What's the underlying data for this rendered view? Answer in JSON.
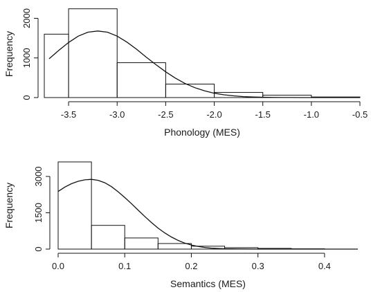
{
  "chart_data": [
    {
      "type": "bar",
      "subtype": "histogram",
      "title": "",
      "xlabel": "Phonology (MES)",
      "ylabel": "Frequency",
      "xlim": [
        -3.75,
        -0.5
      ],
      "ylim": [
        0,
        2200
      ],
      "x_ticks": [
        "-3.5",
        "-3.0",
        "-2.5",
        "-2.0",
        "-1.5",
        "-1.0",
        "-0.5"
      ],
      "y_ticks": [
        "0",
        "1000",
        "2000"
      ],
      "bins": [
        {
          "start": -3.75,
          "end": -3.5,
          "value": 1600
        },
        {
          "start": -3.5,
          "end": -3.0,
          "value": 2240
        },
        {
          "start": -3.0,
          "end": -2.5,
          "value": 880
        },
        {
          "start": -2.5,
          "end": -2.0,
          "value": 340
        },
        {
          "start": -2.0,
          "end": -1.5,
          "value": 130
        },
        {
          "start": -1.5,
          "end": -1.0,
          "value": 60
        },
        {
          "start": -1.0,
          "end": -0.5,
          "value": 15
        }
      ],
      "density_curve": {
        "x": [
          -3.7,
          -3.6,
          -3.5,
          -3.4,
          -3.3,
          -3.2,
          -3.1,
          -3.0,
          -2.9,
          -2.8,
          -2.7,
          -2.6,
          -2.5,
          -2.4,
          -2.3,
          -2.2,
          -2.1,
          -2.0,
          -1.9,
          -1.8,
          -1.7,
          -1.6,
          -1.5,
          -1.4,
          -1.3,
          -1.2,
          -1.1,
          -1.0,
          -0.9,
          -0.8,
          -0.7,
          -0.6,
          -0.5
        ],
        "y": [
          980,
          1190,
          1390,
          1550,
          1650,
          1680,
          1650,
          1550,
          1400,
          1220,
          1020,
          830,
          650,
          490,
          355,
          250,
          170,
          110,
          70,
          43,
          25,
          14,
          8,
          4,
          2,
          1,
          0,
          0,
          0,
          0,
          0,
          0,
          0
        ]
      },
      "grid": false
    },
    {
      "type": "bar",
      "subtype": "histogram",
      "title": "",
      "xlabel": "Semantics (MES)",
      "ylabel": "Frequency",
      "xlim": [
        0,
        0.45
      ],
      "ylim": [
        0,
        3600
      ],
      "x_ticks": [
        "0.0",
        "0.1",
        "0.2",
        "0.3",
        "0.4"
      ],
      "y_ticks": [
        "0",
        "1500",
        "3000"
      ],
      "bins": [
        {
          "start": 0.0,
          "end": 0.05,
          "value": 3600
        },
        {
          "start": 0.05,
          "end": 0.1,
          "value": 980
        },
        {
          "start": 0.1,
          "end": 0.15,
          "value": 460
        },
        {
          "start": 0.15,
          "end": 0.2,
          "value": 230
        },
        {
          "start": 0.2,
          "end": 0.25,
          "value": 120
        },
        {
          "start": 0.25,
          "end": 0.3,
          "value": 60
        },
        {
          "start": 0.3,
          "end": 0.35,
          "value": 30
        },
        {
          "start": 0.35,
          "end": 0.4,
          "value": 12
        }
      ],
      "density_curve": {
        "x": [
          0.0,
          0.01,
          0.02,
          0.03,
          0.04,
          0.05,
          0.06,
          0.07,
          0.08,
          0.09,
          0.1,
          0.11,
          0.12,
          0.13,
          0.14,
          0.15,
          0.16,
          0.17,
          0.18,
          0.19,
          0.2,
          0.21,
          0.22,
          0.23,
          0.24,
          0.25,
          0.27,
          0.3,
          0.33,
          0.36,
          0.4,
          0.45
        ],
        "y": [
          2380,
          2560,
          2700,
          2800,
          2860,
          2880,
          2840,
          2740,
          2580,
          2370,
          2130,
          1880,
          1610,
          1350,
          1100,
          870,
          670,
          500,
          360,
          250,
          170,
          110,
          70,
          40,
          25,
          14,
          5,
          1,
          0,
          0,
          0,
          0
        ]
      },
      "grid": false
    }
  ]
}
